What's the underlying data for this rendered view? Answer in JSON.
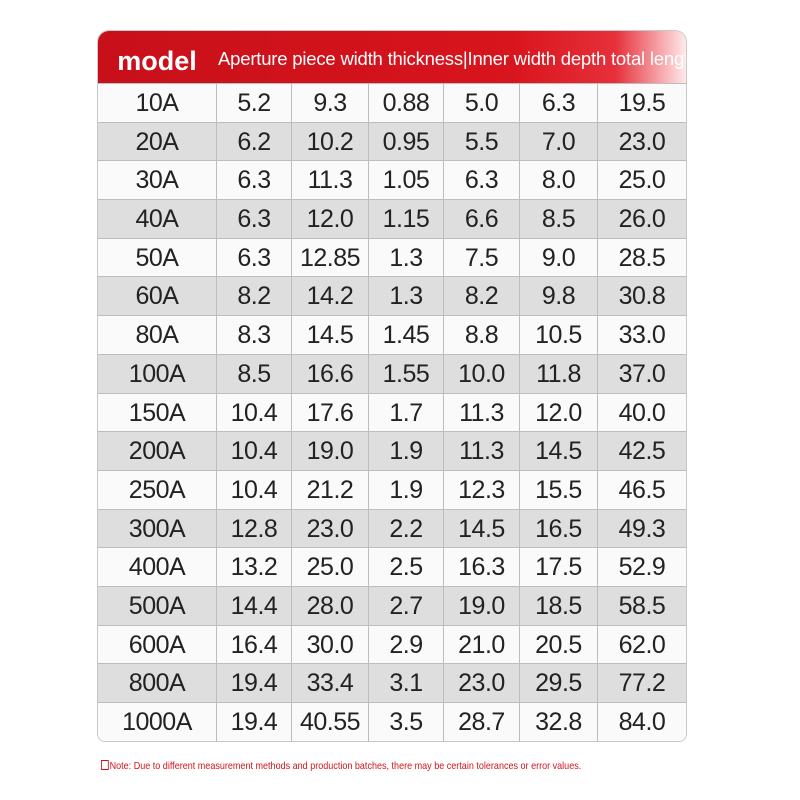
{
  "table": {
    "header": {
      "model": "model",
      "description": "Aperture piece width thickness|Inner width depth total length"
    },
    "rows": [
      [
        "10A",
        "5.2",
        "9.3",
        "0.88",
        "5.0",
        "6.3",
        "19.5"
      ],
      [
        "20A",
        "6.2",
        "10.2",
        "0.95",
        "5.5",
        "7.0",
        "23.0"
      ],
      [
        "30A",
        "6.3",
        "11.3",
        "1.05",
        "6.3",
        "8.0",
        "25.0"
      ],
      [
        "40A",
        "6.3",
        "12.0",
        "1.15",
        "6.6",
        "8.5",
        "26.0"
      ],
      [
        "50A",
        "6.3",
        "12.85",
        "1.3",
        "7.5",
        "9.0",
        "28.5"
      ],
      [
        "60A",
        "8.2",
        "14.2",
        "1.3",
        "8.2",
        "9.8",
        "30.8"
      ],
      [
        "80A",
        "8.3",
        "14.5",
        "1.45",
        "8.8",
        "10.5",
        "33.0"
      ],
      [
        "100A",
        "8.5",
        "16.6",
        "1.55",
        "10.0",
        "11.8",
        "37.0"
      ],
      [
        "150A",
        "10.4",
        "17.6",
        "1.7",
        "11.3",
        "12.0",
        "40.0"
      ],
      [
        "200A",
        "10.4",
        "19.0",
        "1.9",
        "11.3",
        "14.5",
        "42.5"
      ],
      [
        "250A",
        "10.4",
        "21.2",
        "1.9",
        "12.3",
        "15.5",
        "46.5"
      ],
      [
        "300A",
        "12.8",
        "23.0",
        "2.2",
        "14.5",
        "16.5",
        "49.3"
      ],
      [
        "400A",
        "13.2",
        "25.0",
        "2.5",
        "16.3",
        "17.5",
        "52.9"
      ],
      [
        "500A",
        "14.4",
        "28.0",
        "2.7",
        "19.0",
        "18.5",
        "58.5"
      ],
      [
        "600A",
        "16.4",
        "30.0",
        "2.9",
        "21.0",
        "20.5",
        "62.0"
      ],
      [
        "800A",
        "19.4",
        "33.4",
        "3.1",
        "23.0",
        "29.5",
        "77.2"
      ],
      [
        "1000A",
        "19.4",
        "40.55",
        "3.5",
        "28.7",
        "32.8",
        "84.0"
      ]
    ]
  },
  "note": "Note: Due to different measurement methods and production batches, there may be certain tolerances or error values."
}
